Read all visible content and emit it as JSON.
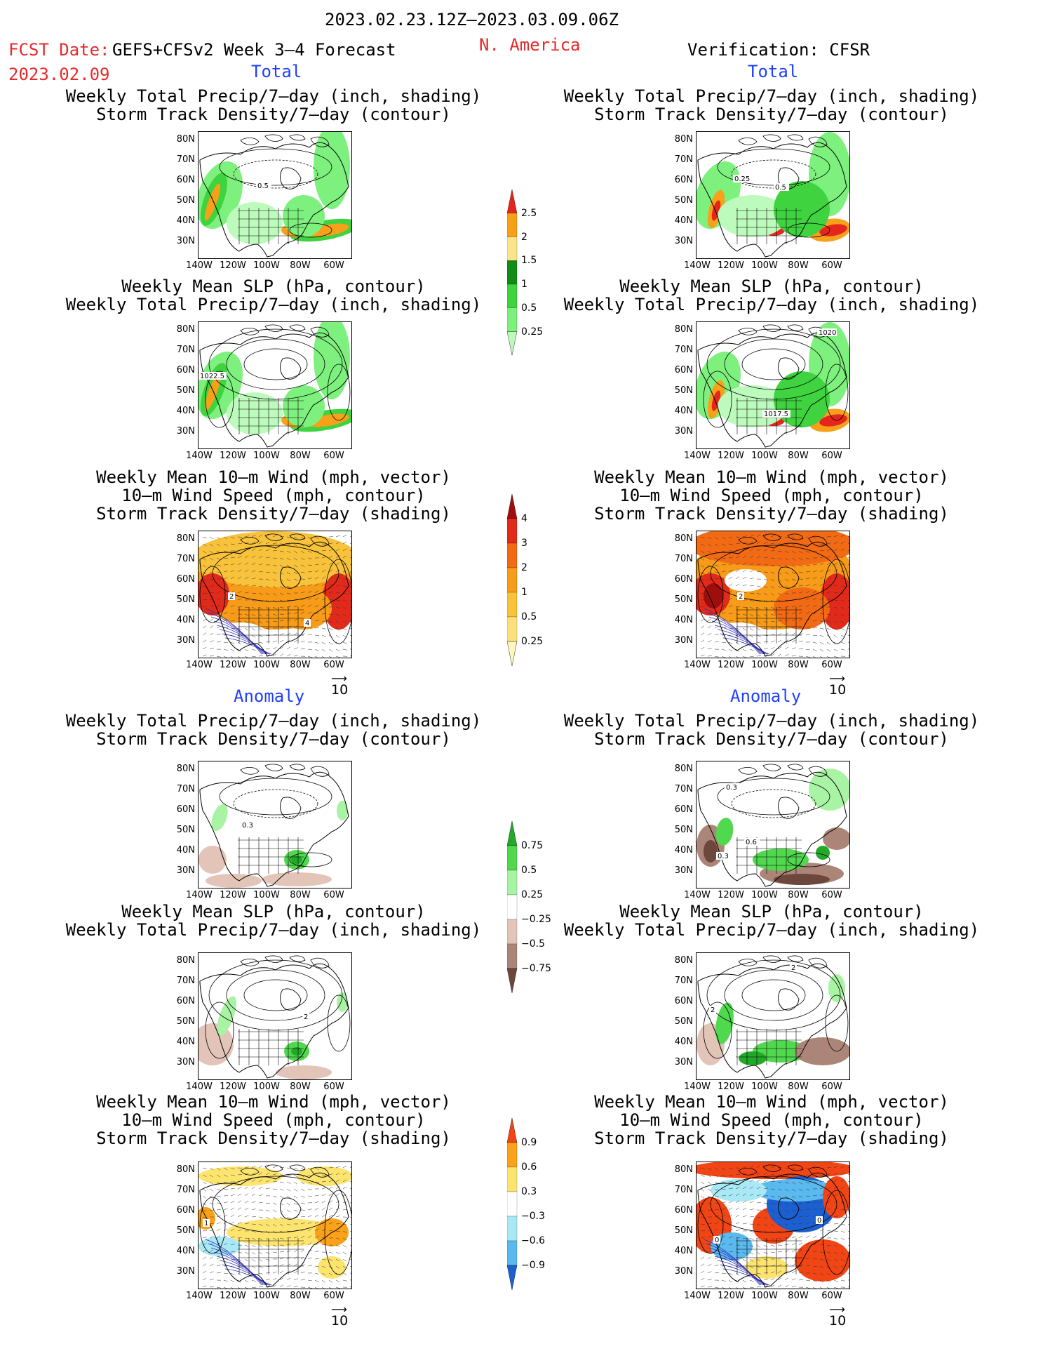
{
  "header": {
    "date_range": "2023.02.23.12Z–2023.03.09.06Z",
    "fcst_label": "FCST Date:",
    "fcst_model": "GEFS+CFSv2 Week 3–4 Forecast",
    "fcst_date": "2023.02.09",
    "region": "N. America",
    "verification": "Verification: CFSR"
  },
  "section_labels": {
    "total": "Total",
    "anomaly": "Anomaly"
  },
  "titles": {
    "precip_storm": [
      "Weekly Total Precip/7–day (inch, shading)",
      "Storm Track Density/7–day (contour)"
    ],
    "slp_precip": [
      "Weekly Mean SLP (hPa, contour)",
      "Weekly Total Precip/7–day (inch, shading)"
    ],
    "wind": [
      "Weekly Mean 10–m Wind (mph, vector)",
      "10–m Wind Speed (mph, contour)",
      "Storm Track Density/7–day (shading)"
    ]
  },
  "axes": {
    "lat_labels": [
      "80N",
      "70N",
      "60N",
      "50N",
      "40N",
      "30N"
    ],
    "lon_labels": [
      "140W",
      "120W",
      "100W",
      "80W",
      "60W"
    ]
  },
  "vector_ref": "10",
  "contour_labels": {
    "ft_precip": "0.5",
    "vt_precip_a": "0.25",
    "vt_precip_b": "0.5",
    "ft_slp": "1022.5",
    "vt_slp_a": "1020",
    "vt_slp_b": "1017.5",
    "ft_wind_a": "2",
    "ft_wind_b": "4",
    "vt_wind": "2",
    "fa_precip": "0.3",
    "va_precip_a": "0.3",
    "va_precip_b": "0.6",
    "va_precip_c": "0.3",
    "fa_slp": "2",
    "va_slp_a": "2",
    "va_slp_b": "2",
    "fa_wind": "1",
    "va_wind_a": "0",
    "va_wind_b": "0"
  },
  "colorbars": {
    "precip_total": {
      "labels": [
        "2.5",
        "2",
        "1.5",
        "1",
        "0.5",
        "0.25"
      ],
      "colors": [
        "#e4261d",
        "#f7a01a",
        "#fbe58a",
        "#138b17",
        "#3fd33f",
        "#7ef07e",
        "#bdfbbd"
      ]
    },
    "storm_total": {
      "labels": [
        "4",
        "3",
        "2",
        "1",
        "0.5",
        "0.25"
      ],
      "colors": [
        "#a10d0d",
        "#e22a1a",
        "#f36a14",
        "#f79b18",
        "#f8c23a",
        "#fde07b",
        "#fef6bb"
      ]
    },
    "precip_anom": {
      "labels": [
        "0.75",
        "0.5",
        "0.25",
        "−0.25",
        "−0.5",
        "−0.75"
      ],
      "colors": [
        "#23a92a",
        "#50d84e",
        "#a9f3a4",
        "#ffffff",
        "#e3c4b8",
        "#ab8578",
        "#6e473c"
      ]
    },
    "storm_anom": {
      "labels": [
        "0.9",
        "0.6",
        "0.3",
        "−0.3",
        "−0.6",
        "−0.9"
      ],
      "colors": [
        "#f24515",
        "#fba21a",
        "#fde46f",
        "#ffffff",
        "#a9e8f5",
        "#5ab9ee",
        "#1c5fd1"
      ]
    }
  }
}
